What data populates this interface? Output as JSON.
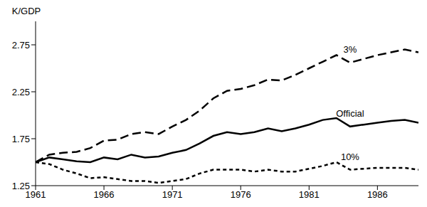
{
  "chart_data": {
    "type": "line",
    "y_label": "K/GDP",
    "x": [
      1961,
      1962,
      1963,
      1964,
      1965,
      1966,
      1967,
      1968,
      1969,
      1970,
      1971,
      1972,
      1973,
      1974,
      1975,
      1976,
      1977,
      1978,
      1979,
      1980,
      1981,
      1982,
      1983,
      1984,
      1985,
      1986,
      1987,
      1988,
      1989
    ],
    "series": [
      {
        "name": "3%",
        "color": "#000000",
        "line_style": "long_dash",
        "values": [
          1.5,
          1.58,
          1.6,
          1.61,
          1.65,
          1.73,
          1.74,
          1.8,
          1.82,
          1.8,
          1.88,
          1.95,
          2.05,
          2.18,
          2.26,
          2.28,
          2.32,
          2.38,
          2.37,
          2.43,
          2.5,
          2.57,
          2.64,
          2.56,
          2.6,
          2.64,
          2.67,
          2.7,
          2.67
        ]
      },
      {
        "name": "Official",
        "color": "#000000",
        "line_style": "solid",
        "values": [
          1.5,
          1.55,
          1.53,
          1.51,
          1.5,
          1.55,
          1.53,
          1.58,
          1.55,
          1.56,
          1.6,
          1.63,
          1.7,
          1.78,
          1.82,
          1.8,
          1.82,
          1.86,
          1.83,
          1.86,
          1.9,
          1.95,
          1.97,
          1.88,
          1.9,
          1.92,
          1.94,
          1.95,
          1.92
        ]
      },
      {
        "name": "10%",
        "color": "#000000",
        "line_style": "short_dash",
        "values": [
          1.5,
          1.48,
          1.42,
          1.38,
          1.33,
          1.34,
          1.32,
          1.3,
          1.3,
          1.28,
          1.3,
          1.32,
          1.38,
          1.42,
          1.42,
          1.42,
          1.4,
          1.42,
          1.4,
          1.4,
          1.43,
          1.46,
          1.5,
          1.42,
          1.43,
          1.44,
          1.44,
          1.44,
          1.42
        ]
      }
    ],
    "xlim": [
      1961,
      1989
    ],
    "xticks": [
      1961,
      1966,
      1971,
      1976,
      1981,
      1986
    ],
    "ylim": [
      1.25,
      3
    ],
    "yticks": [
      1.25,
      1.75,
      2.25,
      2.75
    ],
    "grid": false
  }
}
